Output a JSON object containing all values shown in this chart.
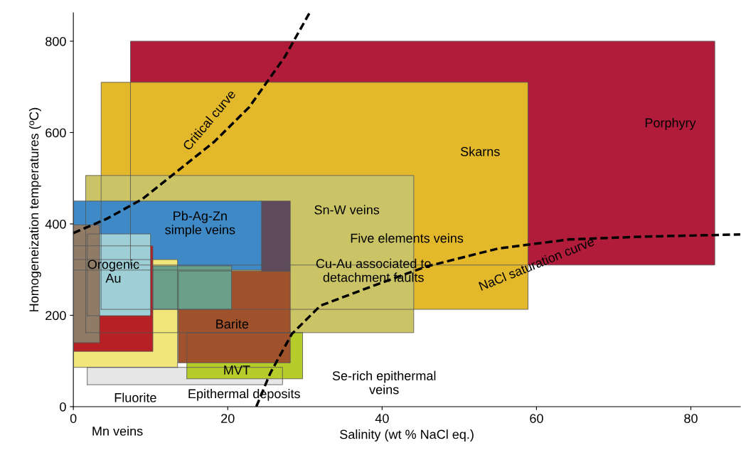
{
  "chart_data": {
    "type": "area",
    "xlabel": "Salinity (wt % NaCl eq.)",
    "ylabel": "Homogeneization temperatures (ºC)",
    "xlim": [
      0,
      86.4
    ],
    "ylim": [
      0,
      862
    ],
    "xticks": [
      0,
      20,
      40,
      60,
      80
    ],
    "yticks": [
      0,
      200,
      400,
      600,
      800
    ],
    "series": [
      {
        "color": "#b01c3a",
        "x": [
          7.4,
          83.1,
          83.1,
          7.4,
          7.4
        ],
        "values": [
          310,
          310,
          800,
          800,
          310
        ]
      },
      {
        "color": "#e3b82a",
        "x": [
          3.6,
          58.9,
          58.9,
          3.6,
          3.6
        ],
        "values": [
          213,
          213,
          710,
          710,
          213
        ]
      },
      {
        "color": "#cbc466",
        "x": [
          1.6,
          44.1,
          44.1,
          1.6,
          1.6
        ],
        "values": [
          162,
          162,
          506,
          506,
          162
        ]
      },
      {
        "color": "#3f8ac6",
        "x": [
          0,
          24.4,
          24.4,
          0,
          0
        ],
        "values": [
          299,
          299,
          450,
          450,
          299
        ]
      },
      {
        "color": "#5e4a5a",
        "x": [
          24.4,
          28.1,
          28.1,
          24.4,
          24.4
        ],
        "values": [
          296,
          296,
          450,
          450,
          296
        ]
      },
      {
        "color": "#e6e6e6",
        "x": [
          1.8,
          27.1,
          27.1,
          1.8,
          1.8
        ],
        "values": [
          48,
          48,
          86,
          86,
          48
        ]
      },
      {
        "color": "#f0e67a",
        "x": [
          0,
          13.5,
          13.5,
          0,
          0
        ],
        "values": [
          86,
          86,
          322,
          322,
          86
        ]
      },
      {
        "color": "#b5cc2a",
        "x": [
          14.7,
          29.7,
          29.7,
          14.7,
          14.7
        ],
        "values": [
          61,
          61,
          162,
          162,
          61
        ]
      },
      {
        "color": "#a0522d",
        "x": [
          13.6,
          28.1,
          28.1,
          13.6,
          13.6
        ],
        "values": [
          96,
          96,
          297,
          297,
          96
        ]
      },
      {
        "color": "#b72025",
        "x": [
          0,
          10.3,
          10.3,
          0,
          0
        ],
        "values": [
          121,
          121,
          352,
          352,
          121
        ]
      },
      {
        "color": "#6aa08a",
        "x": [
          10.3,
          20.5,
          20.5,
          10.3,
          10.3
        ],
        "values": [
          213,
          213,
          308,
          308,
          213
        ]
      },
      {
        "color": "#9fcfd6",
        "x": [
          1.8,
          10,
          10,
          1.8,
          1.8
        ],
        "values": [
          199,
          199,
          378,
          378,
          199
        ]
      },
      {
        "color": "#8f7b66",
        "x": [
          0,
          3.4,
          3.4,
          0,
          0
        ],
        "values": [
          140,
          140,
          398,
          398,
          140
        ]
      },
      {
        "type": "line",
        "color": "#000000",
        "line_style": "dashed",
        "x": [
          0,
          4.3,
          8.9,
          13.5,
          18.2,
          22.8,
          27.4,
          30.6
        ],
        "values": [
          380,
          411,
          454,
          516,
          579,
          656,
          766,
          862
        ]
      },
      {
        "type": "line",
        "color": "#000000",
        "line_style": "dashed",
        "x": [
          23.7,
          25.5,
          28.3,
          32,
          39.4,
          45.8,
          55,
          64.2,
          73.5,
          86.4
        ],
        "values": [
          0,
          73,
          159,
          221,
          268,
          307,
          346,
          366,
          372,
          377
        ]
      }
    ],
    "annotations": [
      "Porphyry",
      "Skarns",
      "Sn-W veins",
      "Pb-Ag-Zn\nsimple veins",
      "Five elements veins",
      "Cu-Au associated to\ndetachment faults",
      "Orogenic\nAu",
      "Barite",
      "MVT",
      "Se-rich epithermal\nveins",
      "Fluorite",
      "Epithermal deposits",
      "Mn veins",
      "Critical curve",
      "NaCl saturation curve"
    ]
  }
}
